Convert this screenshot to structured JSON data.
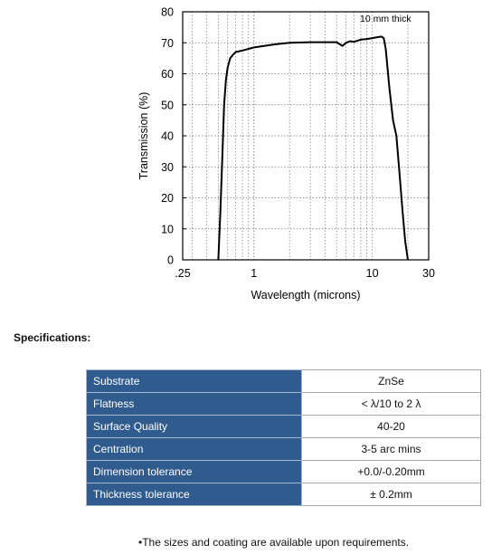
{
  "chart_data": {
    "type": "line",
    "x_scale": "log",
    "xlim": [
      0.25,
      30
    ],
    "ylim": [
      0,
      80
    ],
    "grid": true,
    "xlabel": "Wavelength (microns)",
    "ylabel": "Transmission (%)",
    "annotation": "10 mm thick",
    "x_ticks": [
      {
        "value": 0.25,
        "label": ".25"
      },
      {
        "value": 1,
        "label": "1"
      },
      {
        "value": 10,
        "label": "10"
      },
      {
        "value": 30,
        "label": "30"
      }
    ],
    "y_ticks": [
      0,
      10,
      20,
      30,
      40,
      50,
      60,
      70,
      80
    ],
    "series": [
      {
        "color": "#000000",
        "x": [
          0.5,
          0.52,
          0.54,
          0.56,
          0.58,
          0.6,
          0.63,
          0.66,
          0.7,
          0.8,
          1.0,
          1.5,
          2,
          3,
          4,
          5,
          5.6,
          6,
          6.5,
          7,
          8,
          9,
          10,
          11,
          12,
          12.5,
          13,
          14,
          15,
          16,
          17,
          18,
          19,
          20
        ],
        "y": [
          0,
          15,
          33,
          50,
          58,
          62,
          65,
          66,
          67,
          67.5,
          68.5,
          69.5,
          70,
          70.2,
          70.2,
          70.2,
          69,
          70,
          70.5,
          70.3,
          71,
          71.2,
          71.5,
          71.8,
          72,
          71.5,
          68,
          55,
          45,
          40,
          28,
          16,
          6,
          0
        ]
      }
    ]
  },
  "specifications": {
    "heading": "Specifications:",
    "rows": [
      {
        "label": "Substrate",
        "value": "ZnSe"
      },
      {
        "label": "Flatness",
        "value": "< λ/10 to 2 λ"
      },
      {
        "label": "Surface Quality",
        "value": "40-20"
      },
      {
        "label": "Centration",
        "value": "3-5 arc mins"
      },
      {
        "label": "Dimension tolerance",
        "value": "+0.0/-0.20mm"
      },
      {
        "label": "Thickness tolerance",
        "value": "± 0.2mm"
      }
    ],
    "note": "•The sizes and coating are available upon requirements."
  }
}
